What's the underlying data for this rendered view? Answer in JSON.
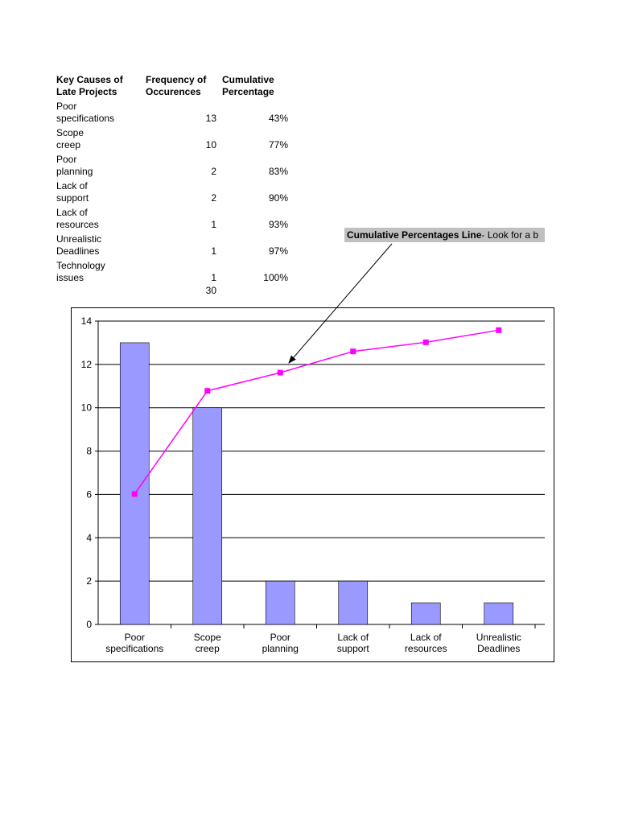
{
  "table": {
    "header": [
      "Key Causes of\nLate Projects",
      "Frequency of\nOccurences",
      "Cumulative\nPercentage"
    ],
    "rows": [
      [
        "Poor\nspecifications",
        "13",
        "43%"
      ],
      [
        "Scope\ncreep",
        "10",
        "77%"
      ],
      [
        "Poor\nplanning",
        "2",
        "83%"
      ],
      [
        "Lack of\nsupport",
        "2",
        "90%"
      ],
      [
        "Lack of\nresources",
        "1",
        "93%"
      ],
      [
        "Unrealistic\nDeadlines",
        "1",
        "97%"
      ],
      [
        "Technology\nissues",
        "1",
        "100%"
      ]
    ],
    "total": "30"
  },
  "annotation": {
    "title": "Cumulative Percentages Line",
    "text": "- Look for a b"
  },
  "chart_data": {
    "type": "bar",
    "categories": [
      "Poor\nspecifications",
      "Scope\ncreep",
      "Poor\nplanning",
      "Lack of\nsupport",
      "Lack of\nresources",
      "Unrealistic\nDeadlines"
    ],
    "series": [
      {
        "type": "bar",
        "color": "#9999ff",
        "values": [
          13,
          10,
          2,
          2,
          1,
          1
        ]
      },
      {
        "type": "line",
        "color": "#ff00ff",
        "axis": "y2",
        "values": [
          43,
          77,
          83,
          90,
          93,
          97
        ]
      }
    ],
    "ylim": [
      0,
      14
    ],
    "yticks": [
      0,
      2,
      4,
      6,
      8,
      10,
      12,
      14
    ],
    "y2lim": [
      0,
      100
    ],
    "grid": true
  }
}
